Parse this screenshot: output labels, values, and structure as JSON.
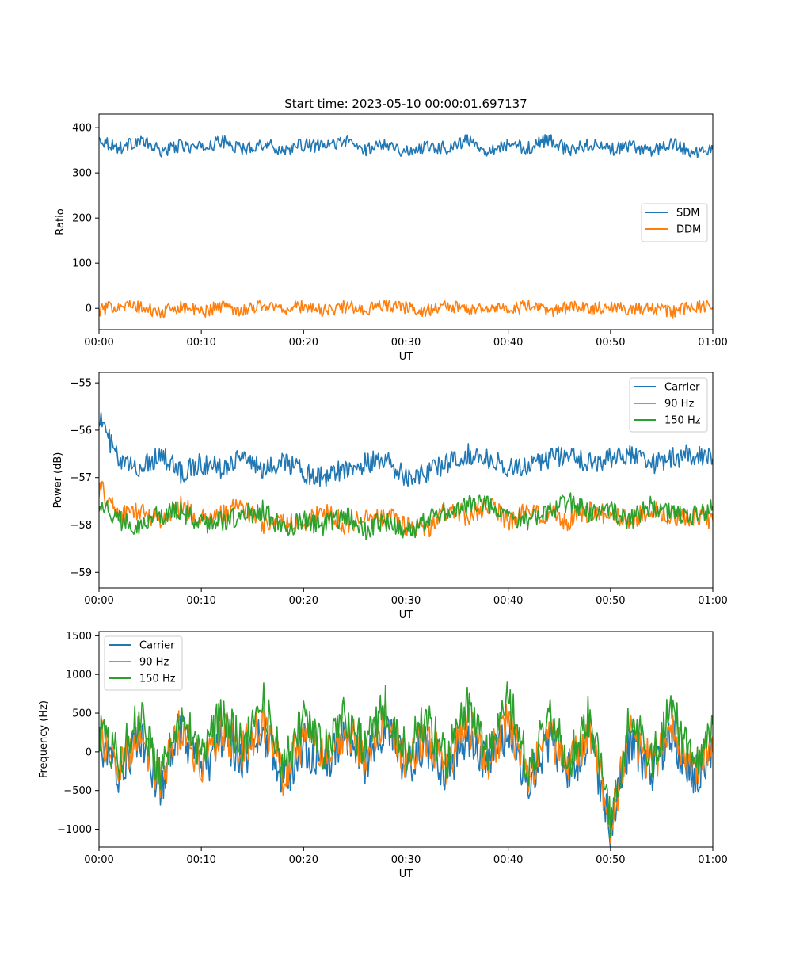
{
  "figure": {
    "title": "Start time: 2023-05-10 00:00:01.697137"
  },
  "colors": {
    "blue": "#1f77b4",
    "orange": "#ff7f0e",
    "green": "#2ca02c"
  },
  "chart_data": [
    {
      "type": "line",
      "title": "Start time: 2023-05-10 00:00:01.697137",
      "xlabel": "UT",
      "ylabel": "Ratio",
      "x_unit": "minutes",
      "xlim": [
        0,
        60
      ],
      "ylim": [
        -47,
        430
      ],
      "xticks": [
        0,
        10,
        20,
        30,
        40,
        50,
        60
      ],
      "xtick_labels": [
        "00:00",
        "00:10",
        "00:20",
        "00:30",
        "00:40",
        "00:50",
        "01:00"
      ],
      "yticks": [
        0,
        100,
        200,
        300,
        400
      ],
      "ytick_labels": [
        "0",
        "100",
        "200",
        "300",
        "400"
      ],
      "grid": false,
      "legend": "center-right",
      "x": [
        0,
        2,
        4,
        6,
        8,
        10,
        12,
        14,
        16,
        18,
        20,
        22,
        24,
        26,
        28,
        30,
        32,
        34,
        36,
        38,
        40,
        42,
        44,
        46,
        48,
        50,
        52,
        54,
        56,
        58,
        60
      ],
      "series": [
        {
          "name": "SDM",
          "color": "#1f77b4",
          "values": [
            375,
            355,
            372,
            348,
            360,
            355,
            370,
            352,
            365,
            350,
            362,
            358,
            372,
            350,
            368,
            345,
            360,
            355,
            372,
            350,
            362,
            355,
            375,
            348,
            365,
            352,
            358,
            350,
            365,
            345,
            352
          ]
        },
        {
          "name": "DDM",
          "color": "#ff7f0e",
          "values": [
            -5,
            8,
            2,
            -10,
            5,
            -8,
            6,
            -4,
            8,
            -2,
            5,
            -6,
            4,
            -3,
            7,
            2,
            -5,
            6,
            -2,
            4,
            -3,
            5,
            -6,
            3,
            -2,
            6,
            -4,
            2,
            -8,
            5,
            3
          ]
        }
      ]
    },
    {
      "type": "line",
      "xlabel": "UT",
      "ylabel": "Power (dB)",
      "x_unit": "minutes",
      "xlim": [
        0,
        60
      ],
      "ylim": [
        -59.33,
        -54.78
      ],
      "xticks": [
        0,
        10,
        20,
        30,
        40,
        50,
        60
      ],
      "xtick_labels": [
        "00:00",
        "00:10",
        "00:20",
        "00:30",
        "00:40",
        "00:50",
        "01:00"
      ],
      "yticks": [
        -59,
        -58,
        -57,
        -56,
        -55
      ],
      "ytick_labels": [
        "−59",
        "−58",
        "−57",
        "−56",
        "−55"
      ],
      "grid": false,
      "legend": "top-right",
      "x": [
        0,
        2,
        4,
        6,
        8,
        10,
        12,
        14,
        16,
        18,
        20,
        22,
        24,
        26,
        28,
        30,
        32,
        34,
        36,
        38,
        40,
        42,
        44,
        46,
        48,
        50,
        52,
        54,
        56,
        58,
        60
      ],
      "series": [
        {
          "name": "Carrier",
          "color": "#1f77b4",
          "values": [
            -55.7,
            -56.7,
            -56.8,
            -56.5,
            -56.9,
            -56.7,
            -56.8,
            -56.5,
            -56.9,
            -56.6,
            -56.9,
            -57.0,
            -56.8,
            -56.7,
            -56.6,
            -57.0,
            -56.9,
            -56.7,
            -56.5,
            -56.6,
            -56.8,
            -56.7,
            -56.6,
            -56.5,
            -56.7,
            -56.6,
            -56.5,
            -56.7,
            -56.6,
            -56.5,
            -56.6
          ]
        },
        {
          "name": "90 Hz",
          "color": "#ff7f0e",
          "values": [
            -57.2,
            -57.8,
            -57.7,
            -57.9,
            -57.6,
            -57.9,
            -57.8,
            -57.6,
            -58.0,
            -57.9,
            -58.0,
            -57.7,
            -58.0,
            -57.8,
            -57.8,
            -58.0,
            -58.1,
            -57.7,
            -57.8,
            -57.6,
            -57.9,
            -57.7,
            -57.8,
            -57.9,
            -57.7,
            -57.8,
            -57.9,
            -57.7,
            -57.8,
            -57.8,
            -57.9
          ]
        },
        {
          "name": "150 Hz",
          "color": "#2ca02c",
          "values": [
            -57.5,
            -57.9,
            -58.0,
            -57.8,
            -57.7,
            -58.0,
            -57.9,
            -57.8,
            -57.7,
            -58.1,
            -57.9,
            -58.0,
            -57.8,
            -58.1,
            -57.9,
            -58.2,
            -57.9,
            -57.7,
            -57.6,
            -57.6,
            -57.8,
            -57.9,
            -57.7,
            -57.5,
            -57.8,
            -57.7,
            -57.9,
            -57.6,
            -57.8,
            -57.8,
            -57.6
          ]
        }
      ]
    },
    {
      "type": "line",
      "xlabel": "UT",
      "ylabel": "Frequency (Hz)",
      "x_unit": "minutes",
      "xlim": [
        0,
        60
      ],
      "ylim": [
        -1230,
        1555
      ],
      "xticks": [
        0,
        10,
        20,
        30,
        40,
        50,
        60
      ],
      "xtick_labels": [
        "00:00",
        "00:10",
        "00:20",
        "00:30",
        "00:40",
        "00:50",
        "01:00"
      ],
      "yticks": [
        -1000,
        -500,
        0,
        500,
        1000,
        1500
      ],
      "ytick_labels": [
        "−1000",
        "−500",
        "0",
        "500",
        "1000",
        "1500"
      ],
      "grid": false,
      "legend": "top-left",
      "x": [
        0,
        2,
        4,
        6,
        8,
        10,
        12,
        14,
        16,
        18,
        20,
        22,
        24,
        26,
        28,
        30,
        32,
        34,
        36,
        38,
        40,
        42,
        44,
        46,
        48,
        50,
        52,
        54,
        56,
        58,
        60
      ],
      "series": [
        {
          "name": "Carrier",
          "color": "#1f77b4",
          "values": [
            100,
            -300,
            200,
            -500,
            250,
            -300,
            200,
            -100,
            300,
            -400,
            100,
            -200,
            200,
            -150,
            300,
            -200,
            100,
            -300,
            250,
            -200,
            300,
            -400,
            150,
            -300,
            200,
            -1000,
            200,
            -300,
            250,
            -400,
            100
          ]
        },
        {
          "name": "90 Hz",
          "color": "#ff7f0e",
          "values": [
            200,
            -200,
            300,
            -400,
            350,
            -200,
            300,
            0,
            400,
            -300,
            200,
            -100,
            300,
            -50,
            400,
            -100,
            200,
            -200,
            350,
            -100,
            400,
            -300,
            250,
            -200,
            300,
            -950,
            300,
            -200,
            350,
            -300,
            200
          ]
        },
        {
          "name": "150 Hz",
          "color": "#2ca02c",
          "values": [
            300,
            -100,
            500,
            -300,
            600,
            -100,
            500,
            100,
            700,
            -200,
            400,
            0,
            500,
            50,
            600,
            0,
            400,
            -100,
            600,
            0,
            700,
            -200,
            450,
            -100,
            500,
            -900,
            500,
            -100,
            600,
            -200,
            350
          ]
        }
      ]
    }
  ]
}
